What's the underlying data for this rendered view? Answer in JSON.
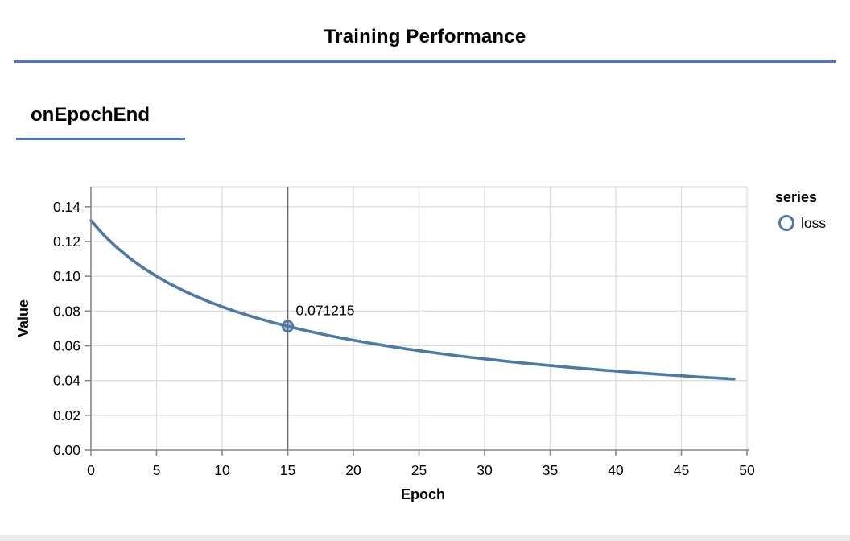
{
  "page": {
    "title": "Training Performance",
    "section_heading": "onEpochEnd",
    "accent_color": "#4879cd",
    "background": "#ffffff"
  },
  "chart_data": {
    "type": "line",
    "title": "",
    "xlabel": "Epoch",
    "ylabel": "Value",
    "xlim": [
      0,
      50
    ],
    "ylim": [
      0,
      0.1515
    ],
    "x_ticks": [
      0,
      5,
      10,
      15,
      20,
      25,
      30,
      35,
      40,
      45,
      50
    ],
    "y_ticks": [
      0,
      0.02,
      0.04,
      0.06,
      0.08,
      0.1,
      0.12,
      0.14
    ],
    "y_tick_labels": [
      "0.00",
      "0.02",
      "0.04",
      "0.06",
      "0.08",
      "0.10",
      "0.12",
      "0.14"
    ],
    "grid": true,
    "grid_color": "#dddddd",
    "axis_color": "#888888",
    "line_color": "#4e79a7",
    "legend": {
      "title": "series",
      "position": "right",
      "entries": [
        {
          "label": "loss",
          "symbol": "open-circle",
          "color": "#4e79a7"
        }
      ]
    },
    "series": [
      {
        "name": "loss",
        "x": [
          0,
          1,
          2,
          3,
          4,
          5,
          6,
          7,
          8,
          9,
          10,
          11,
          12,
          13,
          14,
          15,
          16,
          17,
          18,
          19,
          20,
          21,
          22,
          23,
          24,
          25,
          26,
          27,
          28,
          29,
          30,
          31,
          32,
          33,
          34,
          35,
          36,
          37,
          38,
          39,
          40,
          41,
          42,
          43,
          44,
          45,
          46,
          47,
          48,
          49
        ],
        "values": [
          0.13202,
          0.12358,
          0.11637,
          0.11014,
          0.10471,
          0.09997,
          0.09571,
          0.09186,
          0.08843,
          0.08532,
          0.08248,
          0.07984,
          0.07742,
          0.07521,
          0.0731,
          0.071215,
          0.06935,
          0.06767,
          0.06609,
          0.0646,
          0.06318,
          0.06187,
          0.06061,
          0.05939,
          0.05824,
          0.05713,
          0.05613,
          0.05513,
          0.05418,
          0.05328,
          0.05243,
          0.0516,
          0.0508,
          0.05001,
          0.04928,
          0.04859,
          0.0479,
          0.04727,
          0.04664,
          0.04601,
          0.04543,
          0.04485,
          0.04427,
          0.04374,
          0.04322,
          0.04274,
          0.04221,
          0.04174,
          0.04132,
          0.04085
        ]
      }
    ],
    "annotation": {
      "epoch": 15,
      "value": 0.071215,
      "label": "0.071215",
      "rule_color": "#6b6b6b"
    }
  },
  "footer": {
    "band_color": "#ededed",
    "divider_color": "#dcdcdc"
  }
}
